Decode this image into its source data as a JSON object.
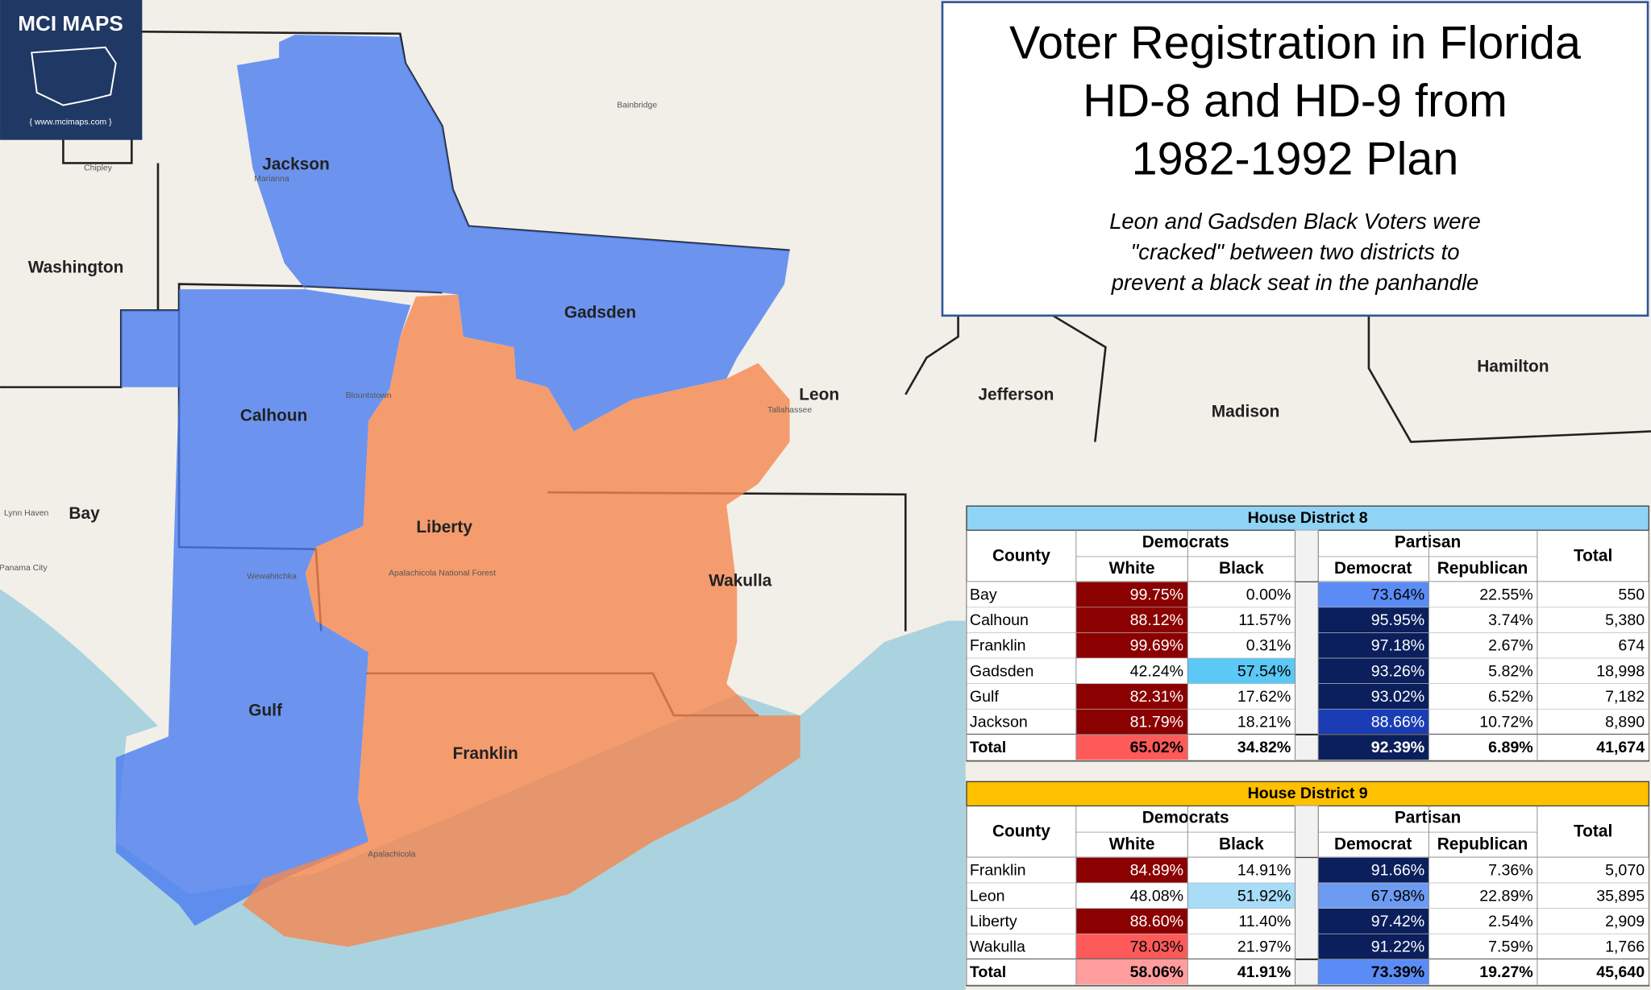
{
  "logo": {
    "title": "MCI MAPS",
    "url": "{ www.mcimaps.com }"
  },
  "header": {
    "title_lines": [
      "Voter Registration in Florida",
      "HD-8 and HD-9 from",
      "1982-1992 Plan"
    ],
    "subtitle_lines": [
      "Leon and Gadsden Black Voters were",
      "\"cracked\" between two districts to",
      "prevent a black seat in the panhandle"
    ]
  },
  "map": {
    "counties": [
      "Jackson",
      "Washington",
      "Gadsden",
      "Calhoun",
      "Leon",
      "Jefferson",
      "Madison",
      "Hamilton",
      "Bay",
      "Liberty",
      "Wakulla",
      "Gulf",
      "Franklin"
    ],
    "places": [
      "Chipley",
      "Marianna",
      "Bainbridge",
      "Tallahassee",
      "Blountstown",
      "Apalachicola National Forest",
      "Lynn Haven",
      "Panama City",
      "Wewahitchka",
      "Apalachicola"
    ]
  },
  "tables": [
    {
      "title": "House District 8",
      "headers": {
        "county": "County",
        "democrats": "Democrats",
        "white": "White",
        "black": "Black",
        "partisan": "Partisan",
        "democrat": "Democrat",
        "republican": "Republican",
        "total": "Total"
      },
      "rows": [
        [
          "Bay",
          "99.75%",
          "0.00%",
          "73.64%",
          "22.55%",
          "550"
        ],
        [
          "Calhoun",
          "88.12%",
          "11.57%",
          "95.95%",
          "3.74%",
          "5,380"
        ],
        [
          "Franklin",
          "99.69%",
          "0.31%",
          "97.18%",
          "2.67%",
          "674"
        ],
        [
          "Gadsden",
          "42.24%",
          "57.54%",
          "93.26%",
          "5.82%",
          "18,998"
        ],
        [
          "Gulf",
          "82.31%",
          "17.62%",
          "93.02%",
          "6.52%",
          "7,182"
        ],
        [
          "Jackson",
          "81.79%",
          "18.21%",
          "88.66%",
          "10.72%",
          "8,890"
        ],
        [
          "Total",
          "65.02%",
          "34.82%",
          "92.39%",
          "6.89%",
          "41,674"
        ]
      ]
    },
    {
      "title": "House District 9",
      "headers": {
        "county": "County",
        "democrats": "Democrats",
        "white": "White",
        "black": "Black",
        "partisan": "Partisan",
        "democrat": "Democrat",
        "republican": "Republican",
        "total": "Total"
      },
      "rows": [
        [
          "Franklin",
          "84.89%",
          "14.91%",
          "91.66%",
          "7.36%",
          "5,070"
        ],
        [
          "Leon",
          "48.08%",
          "51.92%",
          "67.98%",
          "22.89%",
          "35,895"
        ],
        [
          "Liberty",
          "88.60%",
          "11.40%",
          "97.42%",
          "2.54%",
          "2,909"
        ],
        [
          "Wakulla",
          "78.03%",
          "21.97%",
          "91.22%",
          "7.59%",
          "1,766"
        ],
        [
          "Total",
          "58.06%",
          "41.91%",
          "73.39%",
          "19.27%",
          "45,640"
        ]
      ]
    }
  ]
}
